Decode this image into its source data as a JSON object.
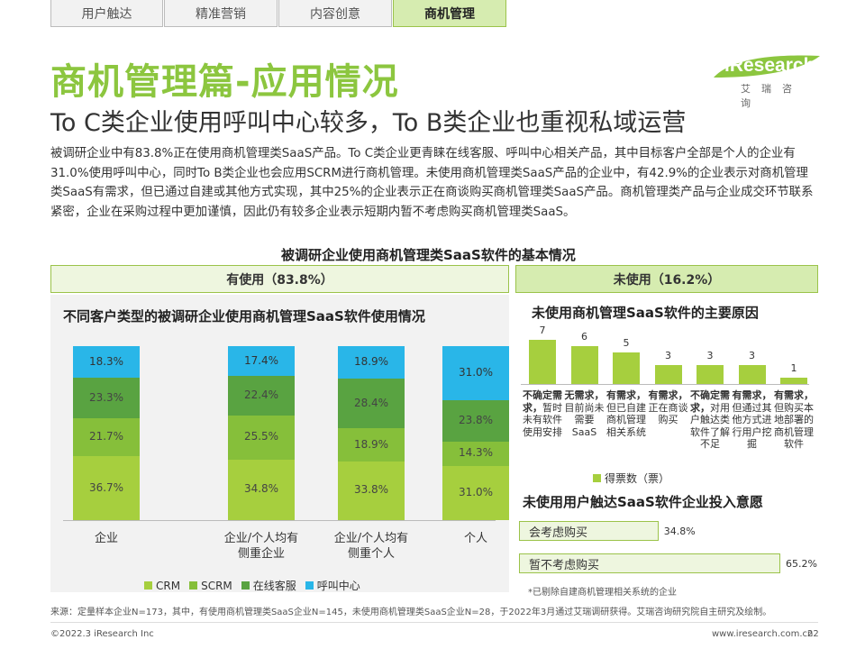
{
  "tabs": [
    "用户触达",
    "精准营销",
    "内容创意",
    "商机管理"
  ],
  "active_tab": "商机管理",
  "title": "商机管理篇-应用情况",
  "subtitle": "To C类企业使用呼叫中心较多，To B类企业也重视私域运营",
  "logo": {
    "brand": "iResearch",
    "cn": "艾瑞咨询"
  },
  "paragraph": "被调研企业中有83.8%正在使用商机管理类SaaS产品。To C类企业更青睐在线客服、呼叫中心相关产品，其中目标客户全部是个人的企业有31.0%使用呼叫中心，同时To B类企业也会应用SCRM进行商机管理。未使用商机管理类SaaS产品的企业中，有42.9%的企业表示对商机管理类SaaS有需求，但已通过自建或其他方式实现，其中25%的企业表示正在商谈购买商机管理类SaaS产品。商机管理类产品与企业成交环节联系紧密，企业在采购过程中更加谨慎，因此仍有较多企业表示短期内暂不考虑购买商机管理类SaaS。",
  "main_chart_title": "被调研企业使用商机管理类SaaS软件的基本情况",
  "band_used": "有使用（83.8%）",
  "band_unused": "未使用（16.2%）",
  "colors": {
    "crm": "#a6cf3e",
    "scrm": "#86bf3a",
    "online": "#59a341",
    "call": "#29b6e8",
    "accent": "#8cc63f"
  },
  "chart_data": [
    {
      "type": "bar",
      "stacked": true,
      "title": "不同客户类型的被调研企业使用商机管理SaaS软件使用情况",
      "categories": [
        "企业",
        "企业/个人均有\n侧重企业",
        "企业/个人均有\n侧重个人",
        "个人"
      ],
      "series": [
        {
          "name": "CRM",
          "values": [
            36.7,
            34.8,
            33.8,
            31.0
          ]
        },
        {
          "name": "SCRM",
          "values": [
            21.7,
            25.5,
            18.9,
            14.3
          ]
        },
        {
          "name": "在线客服",
          "values": [
            23.3,
            22.4,
            28.4,
            23.8
          ]
        },
        {
          "name": "呼叫中心",
          "values": [
            18.3,
            17.4,
            18.9,
            31.0
          ]
        }
      ],
      "value_labels": [
        [
          "36.7%",
          "21.7%",
          "23.3%",
          "18.3%"
        ],
        [
          "34.8%",
          "25.5%",
          "22.4%",
          "17.4%"
        ],
        [
          "33.8%",
          "18.9%",
          "28.4%",
          "18.9%"
        ],
        [
          "31.0%",
          "14.3%",
          "23.8%",
          "31.0%"
        ]
      ],
      "legend": [
        "CRM",
        "SCRM",
        "在线客服",
        "呼叫中心"
      ]
    },
    {
      "type": "bar",
      "title": "未使用商机管理SaaS软件的主要原因",
      "categories": [
        {
          "bold": "不确定需求，",
          "rest": "暂时未有软件使用安排"
        },
        {
          "bold": "无需求，",
          "rest": "目前尚未需要SaaS"
        },
        {
          "bold": "有需求，",
          "rest": "但已自建商机管理相关系统"
        },
        {
          "bold": "有需求，",
          "rest": "正在商谈购买"
        },
        {
          "bold": "不确定需求，",
          "rest": "对用户触达类软件了解不足"
        },
        {
          "bold": "有需求，",
          "rest": "但通过其他方式进行用户挖掘"
        },
        {
          "bold": "有需求，",
          "rest": "但购买本地部署的商机管理软件"
        }
      ],
      "values": [
        7,
        6,
        5,
        3,
        3,
        3,
        1
      ],
      "ylim": [
        0,
        7
      ],
      "legend": "得票数（票）"
    },
    {
      "type": "bar",
      "orientation": "horizontal",
      "title": "未使用用户触达SaaS软件企业投入意愿",
      "categories": [
        "会考虑购买",
        "暂不考虑购买"
      ],
      "values": [
        34.8,
        65.2
      ],
      "value_labels": [
        "34.8%",
        "65.2%"
      ],
      "xlim": [
        0,
        65.2
      ]
    }
  ],
  "note": "*已剔除自建商机管理相关系统的企业",
  "source": "来源：定量样本企业N=173，其中，有使用商机管理类SaaS企业N=145，未使用商机管理类SaaS企业N=28，于2022年3月通过艾瑞调研获得。艾瑞咨询研究院自主研究及绘制。",
  "copyright": "©2022.3 iResearch Inc",
  "website": "www.iresearch.com.cn",
  "page_number": "22"
}
